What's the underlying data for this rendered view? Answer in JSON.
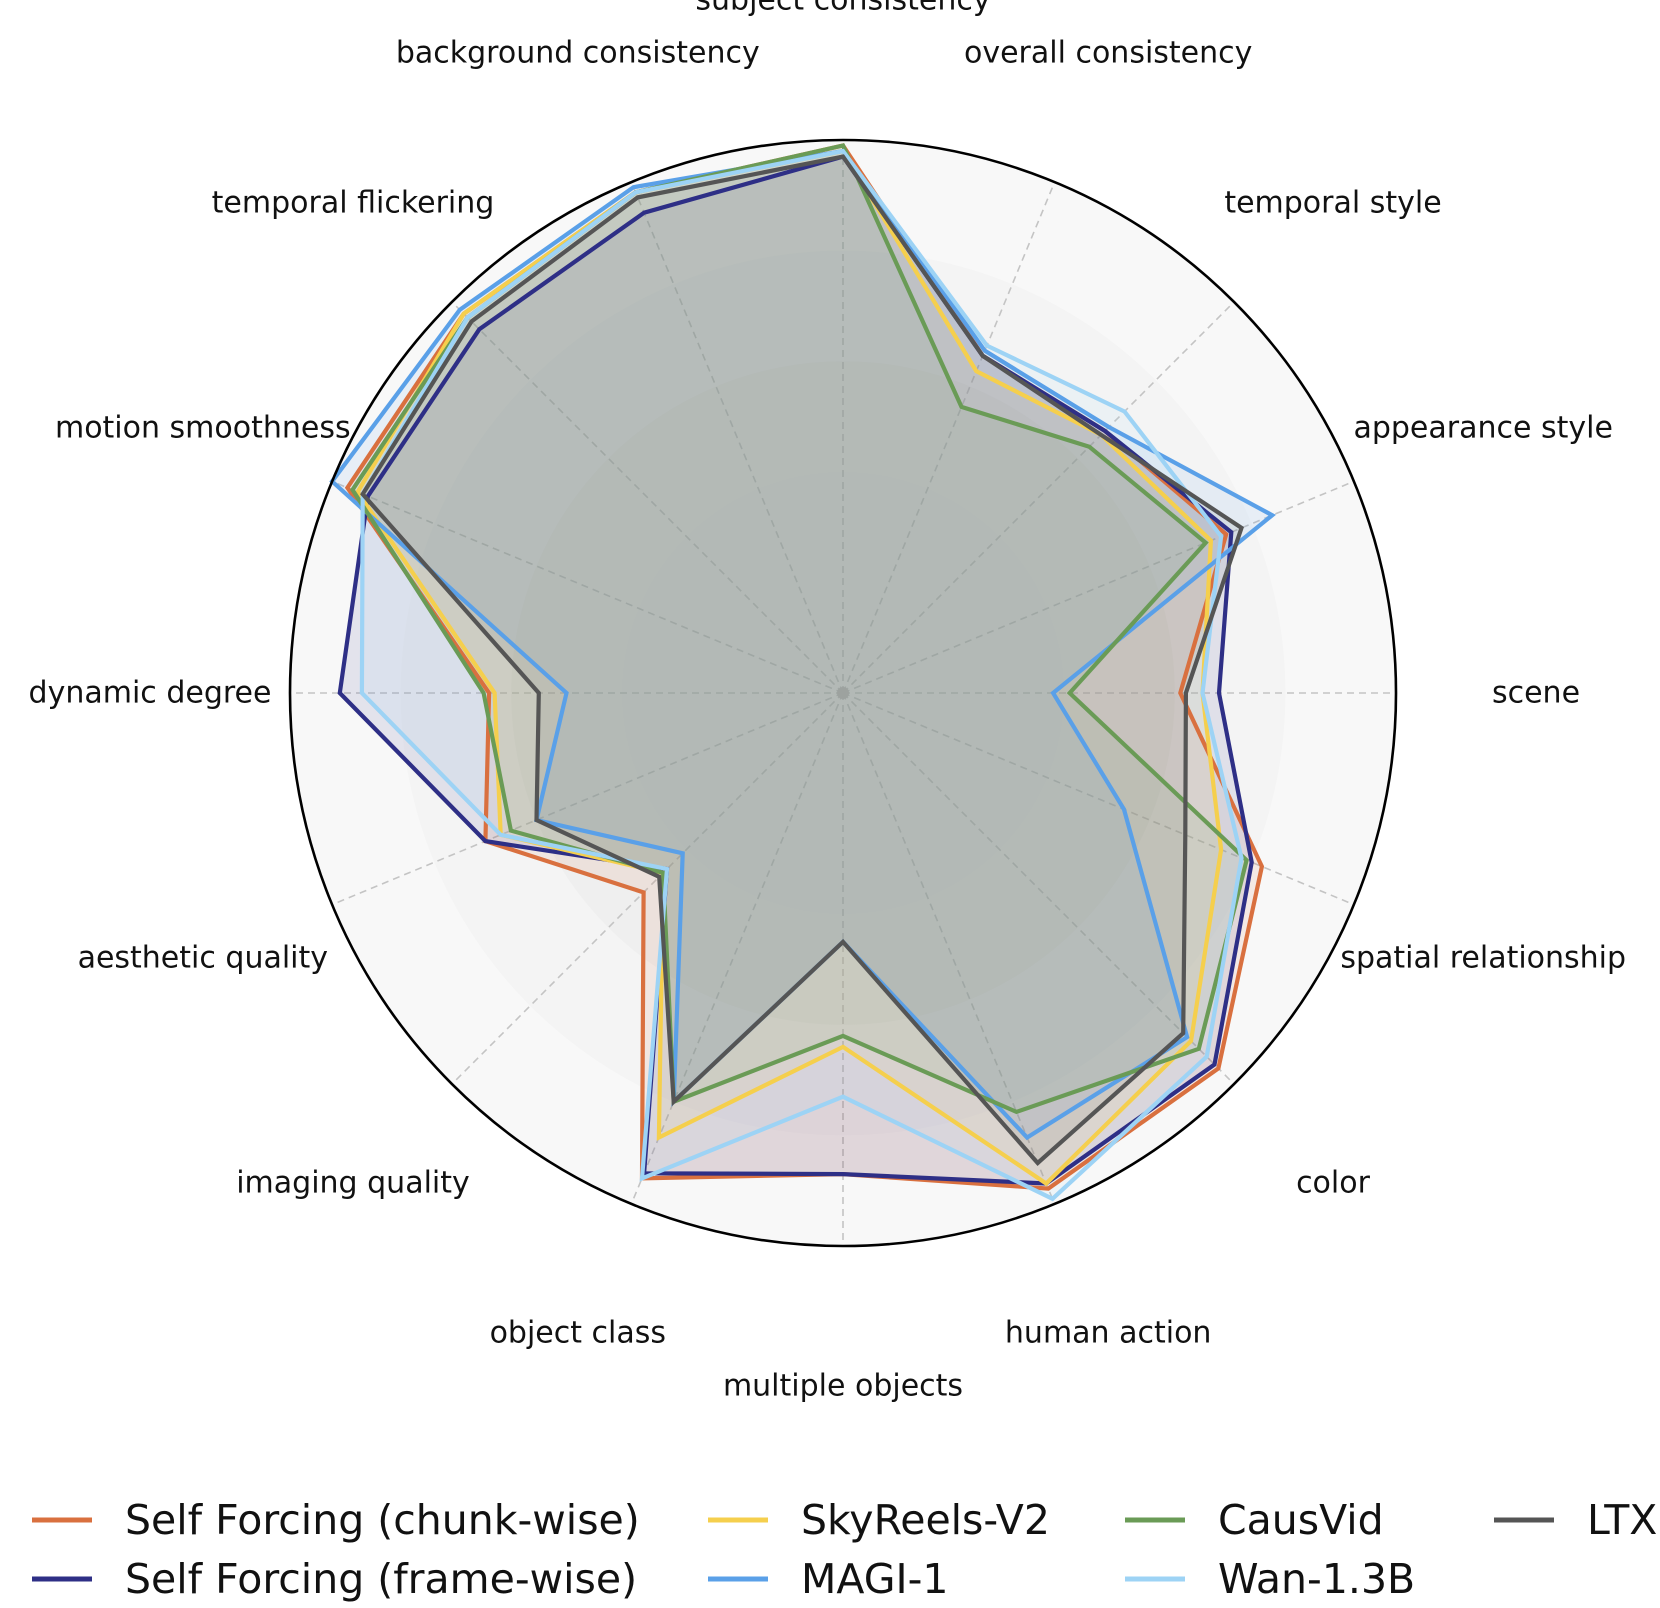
{
  "chart_data": {
    "type": "radar",
    "rlim": [
      0,
      1
    ],
    "grid": true,
    "legend_position": "bottom",
    "axes": [
      "subject consistency",
      "overall consistency",
      "temporal style",
      "appearance style",
      "scene",
      "spatial relationship",
      "color",
      "human action",
      "multiple objects",
      "object class",
      "imaging quality",
      "aesthetic quality",
      "dynamic degree",
      "motion smoothness",
      "temporal flickering",
      "background consistency"
    ],
    "series": [
      {
        "name": "Self Forcing (chunk-wise)",
        "color": "#d9703f",
        "values": [
          0.99,
          0.66,
          0.67,
          0.75,
          0.61,
          0.82,
          0.96,
          0.97,
          0.87,
          0.95,
          0.51,
          0.7,
          0.64,
          0.97,
          0.97,
          0.98
        ]
      },
      {
        "name": "Self Forcing (frame-wise)",
        "color": "#2e2f86",
        "values": [
          0.97,
          0.66,
          0.67,
          0.76,
          0.68,
          0.8,
          0.95,
          0.96,
          0.87,
          0.94,
          0.45,
          0.7,
          0.91,
          0.93,
          0.93,
          0.94
        ]
      },
      {
        "name": "SkyReels-V2",
        "color": "#f5cf4d",
        "values": [
          0.98,
          0.63,
          0.66,
          0.72,
          0.65,
          0.74,
          0.89,
          0.96,
          0.64,
          0.87,
          0.46,
          0.67,
          0.63,
          0.95,
          0.97,
          0.98
        ]
      },
      {
        "name": "MAGI-1",
        "color": "#5aa0e8",
        "values": [
          0.98,
          0.67,
          0.68,
          0.84,
          0.38,
          0.55,
          0.88,
          0.87,
          0.45,
          0.8,
          0.41,
          0.6,
          0.5,
          1.0,
          0.98,
          0.99
        ]
      },
      {
        "name": "CausVid",
        "color": "#6a9b56",
        "values": [
          0.99,
          0.56,
          0.63,
          0.71,
          0.41,
          0.79,
          0.91,
          0.82,
          0.62,
          0.8,
          0.46,
          0.65,
          0.65,
          0.96,
          0.96,
          0.98
        ]
      },
      {
        "name": "Wan-1.3B",
        "color": "#9dd3f5",
        "values": [
          0.98,
          0.68,
          0.72,
          0.74,
          0.65,
          0.78,
          0.93,
          0.99,
          0.73,
          0.95,
          0.45,
          0.67,
          0.87,
          0.94,
          0.96,
          0.98
        ]
      },
      {
        "name": "LTX",
        "color": "#555555",
        "values": [
          0.97,
          0.66,
          0.66,
          0.78,
          0.62,
          0.67,
          0.87,
          0.92,
          0.45,
          0.8,
          0.47,
          0.6,
          0.55,
          0.94,
          0.95,
          0.97
        ]
      }
    ]
  }
}
